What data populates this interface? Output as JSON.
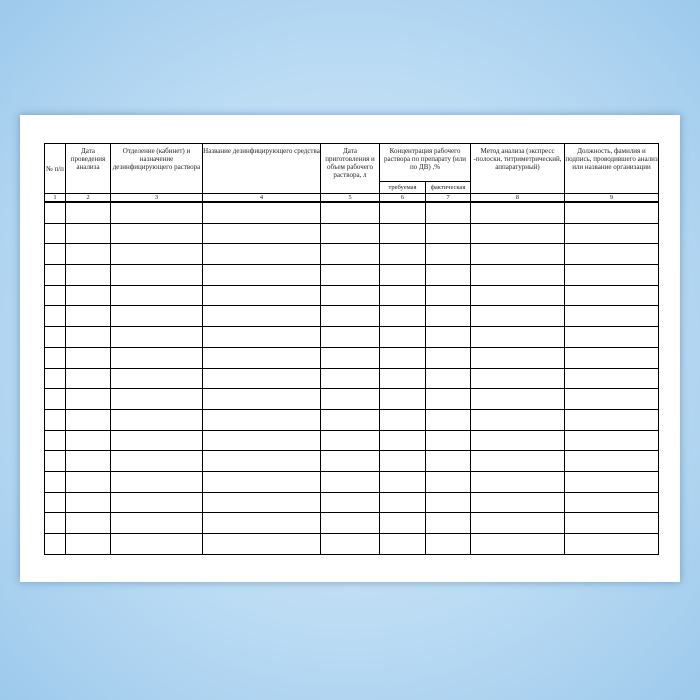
{
  "headers": {
    "c1": "№ п/п",
    "c2": "Дата проведения анализа",
    "c3": "Отделение (кабинет) и назначение дезинфицирующего раствора",
    "c4": "Название дезинфицирующего средства",
    "c5": "Дата приготовления и объем рабочего раствора, л",
    "c67": "Концентрация рабочего раствора по препарату (или по ДВ) ,%",
    "c6": "требуемая",
    "c7": "фактическая",
    "c8": "Метод анализа (экспресс -полоски, титриметрический, аппаратурный)",
    "c9": "Должность, фамилия и подпись, проводившего анализ или название организации"
  },
  "column_numbers": [
    "1",
    "2",
    "3",
    "4",
    "5",
    "6",
    "7",
    "8",
    "9"
  ],
  "empty_rows": 17
}
